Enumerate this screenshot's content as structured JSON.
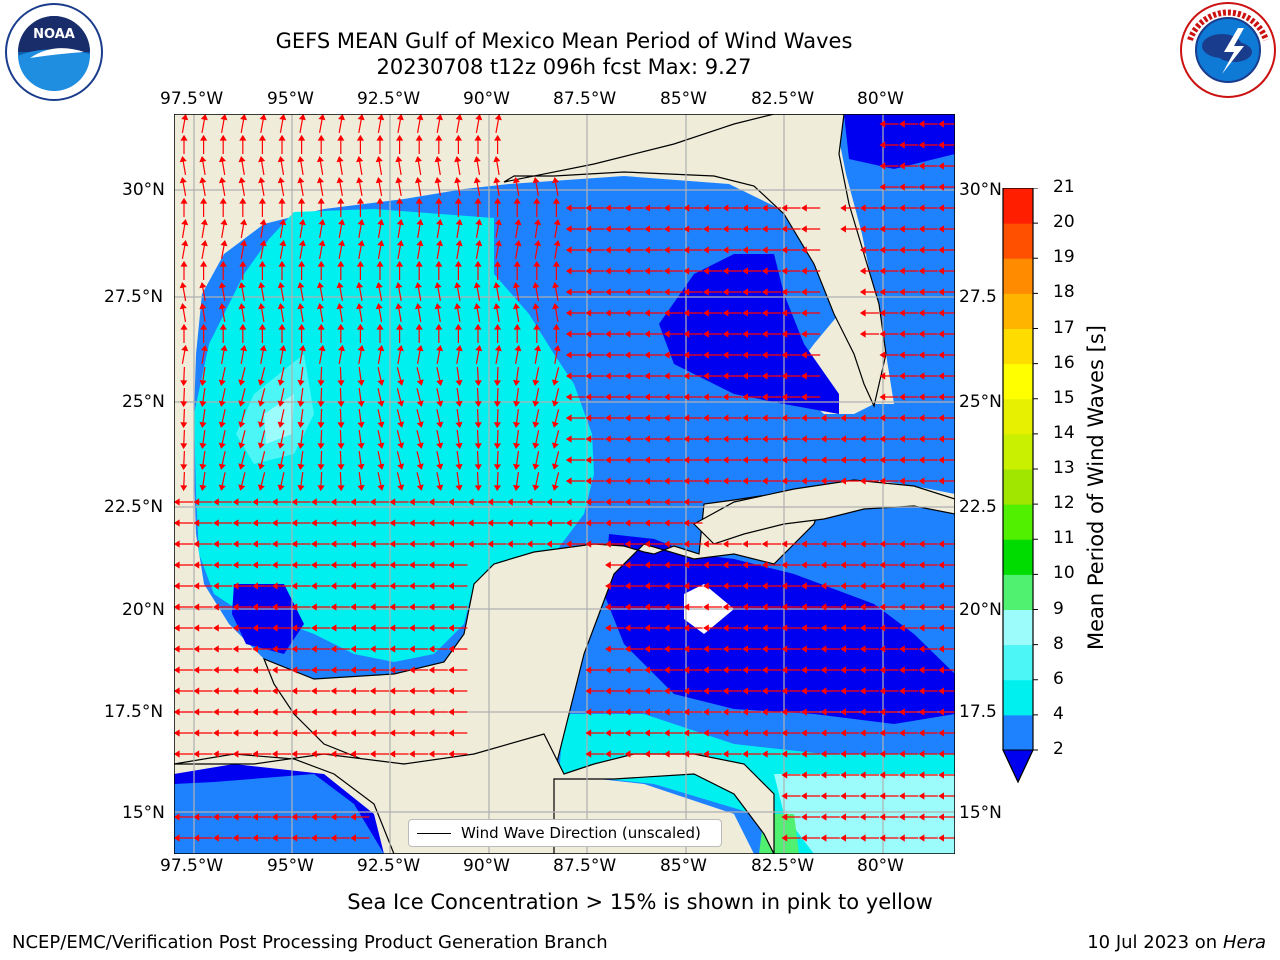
{
  "title": {
    "line1": "GEFS MEAN Gulf of Mexico Mean Period of Wind Waves",
    "line2": "20230708 t12z 096h fcst   Max: 9.27"
  },
  "logos": {
    "left": {
      "name": "noaa-logo",
      "text": "NOAA",
      "ring_text": "NATIONAL OCEANIC AND ATMOSPHERIC ADMINISTRATION · U.S. DEPARTMENT OF COMMERCE"
    },
    "right": {
      "name": "national-weather-service-logo",
      "ring_text": "NATIONAL WEATHER SERVICE"
    }
  },
  "map": {
    "lon_labels": [
      "97.5°W",
      "95°W",
      "92.5°W",
      "90°W",
      "87.5°W",
      "85°W",
      "82.5°W",
      "80°W"
    ],
    "lat_labels_left": [
      "30°N",
      "27.5°N",
      "25°N",
      "22.5°N",
      "20°N",
      "17.5°N",
      "15°N"
    ],
    "lat_labels_right": [
      "30°N",
      "27.5",
      "25°N",
      "22.5",
      "20°N",
      "17.5",
      "15°N"
    ],
    "legend_label": "Wind Wave Direction (unscaled)",
    "colors": {
      "land": "#efedda",
      "ocean_2_4": "#1e82ff",
      "ocean_lt2": "#0000f0",
      "ocean_4_6": "#00f0f0",
      "ocean_6_8": "#4cf6f6",
      "ocean_8_9": "#9cfcfc",
      "ocean_9_10": "#50f070",
      "arrow": "#ff0000",
      "grid": "#b0b0b0"
    }
  },
  "colorbar": {
    "label": "Mean Period of Wind Waves [s]",
    "ticks": [
      "2",
      "4",
      "6",
      "8",
      "9",
      "10",
      "11",
      "12",
      "13",
      "14",
      "15",
      "16",
      "17",
      "18",
      "19",
      "20",
      "21"
    ],
    "colors": [
      "#1e82ff",
      "#00f0f0",
      "#4cf6f6",
      "#9cfcfc",
      "#50f070",
      "#00dc00",
      "#50f000",
      "#a0e600",
      "#c8f000",
      "#e6f000",
      "#ffff00",
      "#ffdc00",
      "#ffb400",
      "#ff8c00",
      "#ff5000",
      "#ff1e00"
    ]
  },
  "footer": {
    "ice_note": "Sea Ice Concentration > 15% is shown in pink to yellow",
    "left": "NCEP/EMC/Verification Post Processing Product Generation Branch",
    "right_date": "10 Jul 2023 on ",
    "right_host": "Hera"
  }
}
